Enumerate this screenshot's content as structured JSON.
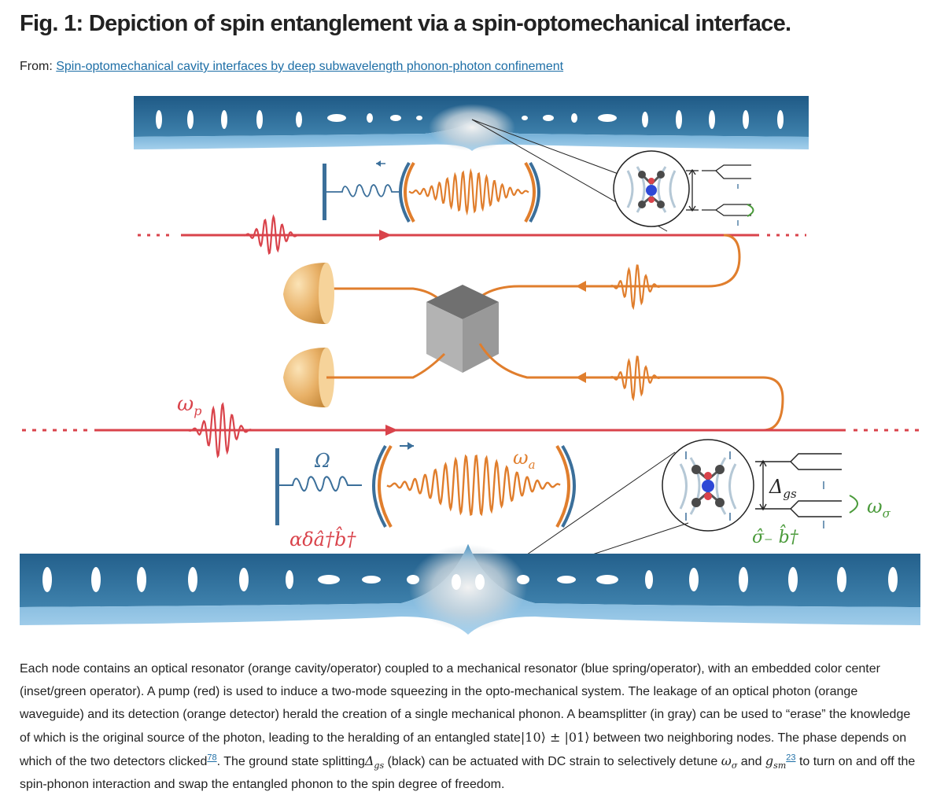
{
  "figure": {
    "title": "Fig. 1: Depiction of spin entanglement via a spin-optomechanical interface.",
    "from_label": "From:",
    "source_link": "Spin-optomechanical cavity interfaces by deep subwavelength phonon-photon confinement",
    "labels": {
      "pump_freq": "ω",
      "pump_sub": "p",
      "mech_freq": "Ω",
      "cav_freq": "ω",
      "cav_sub": "a",
      "ops_main": "αδâ†b̂†",
      "gap": "Δ",
      "gap_sub": "gs",
      "spin_freq": "ω",
      "spin_sub": "σ",
      "spin_ops": "σ̂₋ b̂†"
    },
    "colors": {
      "pump": "#d9434b",
      "optical": "#e07e2d",
      "mechanical": "#3b6f9a",
      "spin": "#4a9a3a",
      "beamsplitter": "#8e8e8e",
      "crystal": "#2f6f9a"
    }
  },
  "caption": {
    "p1": "Each node contains an optical resonator (orange cavity/operator) coupled to a mechanical resonator (blue spring/operator), with an embedded color center (inset/green operator). A pump (red) is used to induce a two-mode squeezing in the opto-mechanical system. The leakage of an optical photon (orange waveguide) and its detection (orange detector) herald the creation of a single mechanical phonon. A beamsplitter (in gray) can be used to “erase” the knowledge of which is the original source of the photon, leading to the heralding of an entangled state",
    "state": "|10⟩ ± |01⟩",
    "p2": " between two neighboring nodes. The phase depends on which of the two detectors clicked",
    "ref1": "78",
    "p3": ". The ground state splitting",
    "delta": "Δ",
    "delta_sub": "gs",
    "p4": " (black) can be actuated with DC strain to selectively detune ",
    "omega": "ω",
    "omega_sub": "σ",
    "p5": " and ",
    "g": "g",
    "g_sub": "sm",
    "ref2": "23",
    "p6": " to turn on and off the spin-phonon interaction and swap the entangled phonon to the spin degree of freedom."
  }
}
